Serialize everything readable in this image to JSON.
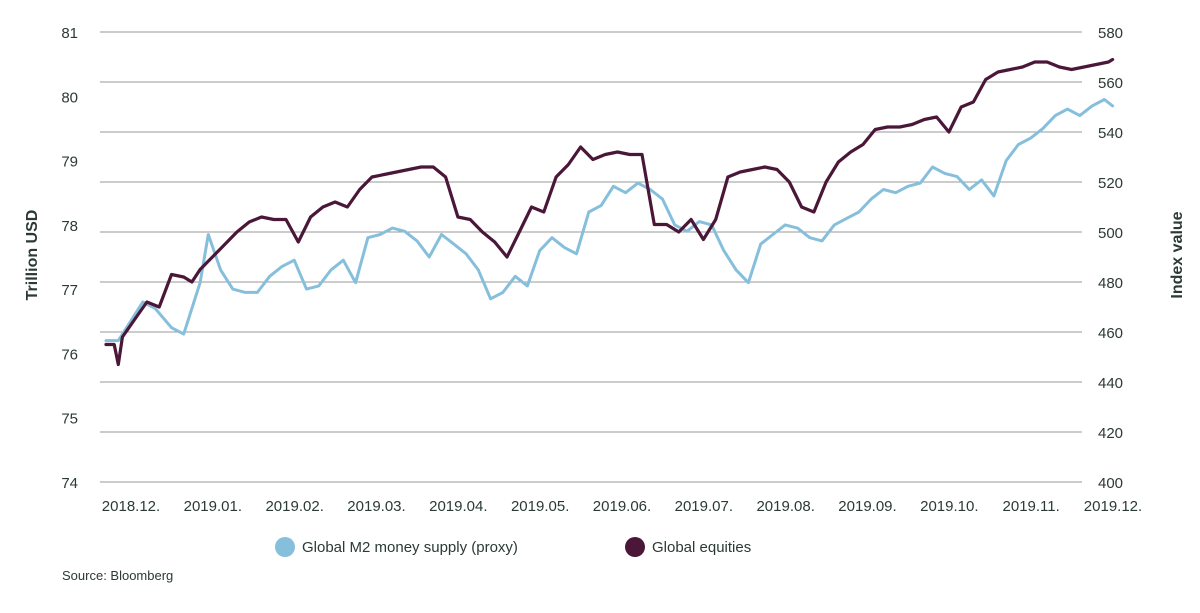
{
  "chart_data": {
    "type": "line",
    "title": "",
    "x_tick_labels": [
      "2018.12.",
      "2019.01.",
      "2019.02.",
      "2019.03.",
      "2019.04.",
      "2019.05.",
      "2019.06.",
      "2019.07.",
      "2019.08.",
      "2019.09.",
      "2019.10.",
      "2019.11.",
      "2019.12."
    ],
    "y_left": {
      "label": "Trillion USD",
      "ylim": [
        74,
        81
      ],
      "ticks": [
        "74",
        "75",
        "76",
        "77",
        "78",
        "79",
        "80",
        "81"
      ]
    },
    "y_right": {
      "label": "Index value",
      "ylim": [
        400,
        580
      ],
      "ticks": [
        "400",
        "420",
        "440",
        "460",
        "480",
        "500",
        "520",
        "540",
        "560",
        "580"
      ]
    },
    "grid": true,
    "legend_position": "bottom",
    "series": [
      {
        "name": "Global M2 money supply (proxy)",
        "axis": "left",
        "color": "#86bfdc",
        "x": [
          0,
          0.15,
          0.3,
          0.45,
          0.6,
          0.8,
          0.95,
          1.05,
          1.15,
          1.25,
          1.4,
          1.55,
          1.7,
          1.85,
          2.0,
          2.15,
          2.3,
          2.45,
          2.6,
          2.75,
          2.9,
          3.05,
          3.2,
          3.35,
          3.5,
          3.65,
          3.8,
          3.95,
          4.1,
          4.25,
          4.4,
          4.55,
          4.7,
          4.85,
          5.0,
          5.15,
          5.3,
          5.45,
          5.6,
          5.75,
          5.9,
          6.05,
          6.2,
          6.35,
          6.5,
          6.65,
          6.8,
          6.95,
          7.1,
          7.25,
          7.4,
          7.55,
          7.7,
          7.85,
          8.0,
          8.15,
          8.3,
          8.45,
          8.6,
          8.75,
          8.9,
          9.05,
          9.2,
          9.35,
          9.5,
          9.65,
          9.8,
          9.95,
          10.1,
          10.25,
          10.4,
          10.55,
          10.7,
          10.85,
          11.0,
          11.15,
          11.3,
          11.45,
          11.6,
          11.75,
          11.9,
          12.05,
          12.2,
          12.3
        ],
        "values": [
          76.2,
          76.2,
          76.5,
          76.8,
          76.7,
          76.4,
          76.3,
          76.7,
          77.1,
          77.85,
          77.3,
          77.0,
          76.95,
          76.95,
          77.2,
          77.35,
          77.45,
          77.0,
          77.05,
          77.3,
          77.45,
          77.1,
          77.8,
          77.85,
          77.95,
          77.9,
          77.75,
          77.5,
          77.85,
          77.7,
          77.55,
          77.3,
          76.85,
          76.95,
          77.2,
          77.05,
          77.6,
          77.8,
          77.65,
          77.55,
          78.2,
          78.3,
          78.6,
          78.5,
          78.65,
          78.55,
          78.4,
          78.0,
          77.9,
          78.05,
          78.0,
          77.6,
          77.3,
          77.1,
          77.7,
          77.85,
          78.0,
          77.95,
          77.8,
          77.75,
          78.0,
          78.1,
          78.2,
          78.4,
          78.55,
          78.5,
          78.6,
          78.65,
          78.9,
          78.8,
          78.75,
          78.55,
          78.7,
          78.45,
          79.0,
          79.25,
          79.35,
          79.5,
          79.7,
          79.8,
          79.7,
          79.85,
          79.95,
          79.85
        ]
      },
      {
        "name": "Global equities",
        "axis": "right",
        "color": "#4a1739",
        "x": [
          0,
          0.1,
          0.15,
          0.2,
          0.35,
          0.5,
          0.65,
          0.8,
          0.95,
          1.05,
          1.15,
          1.3,
          1.45,
          1.6,
          1.75,
          1.9,
          2.05,
          2.2,
          2.35,
          2.5,
          2.65,
          2.8,
          2.95,
          3.1,
          3.25,
          3.4,
          3.55,
          3.7,
          3.85,
          4.0,
          4.15,
          4.3,
          4.45,
          4.6,
          4.75,
          4.9,
          5.05,
          5.2,
          5.35,
          5.5,
          5.65,
          5.8,
          5.95,
          6.1,
          6.25,
          6.4,
          6.55,
          6.7,
          6.85,
          7.0,
          7.15,
          7.3,
          7.45,
          7.6,
          7.75,
          7.9,
          8.05,
          8.2,
          8.35,
          8.5,
          8.65,
          8.8,
          8.95,
          9.1,
          9.25,
          9.4,
          9.55,
          9.7,
          9.85,
          10.0,
          10.15,
          10.3,
          10.45,
          10.6,
          10.75,
          10.9,
          11.05,
          11.2,
          11.35,
          11.5,
          11.65,
          11.8,
          11.95,
          12.1,
          12.25,
          12.3
        ],
        "values": [
          455,
          455,
          447,
          458,
          465,
          472,
          470,
          483,
          482,
          480,
          485,
          490,
          495,
          500,
          504,
          506,
          505,
          505,
          496,
          506,
          510,
          512,
          510,
          517,
          522,
          523,
          524,
          525,
          526,
          526,
          522,
          506,
          505,
          500,
          496,
          490,
          500,
          510,
          508,
          522,
          527,
          534,
          529,
          531,
          532,
          531,
          531,
          503,
          503,
          500,
          505,
          497,
          505,
          522,
          524,
          525,
          526,
          525,
          520,
          510,
          508,
          520,
          528,
          532,
          535,
          541,
          542,
          542,
          543,
          545,
          546,
          540,
          550,
          552,
          561,
          564,
          565,
          566,
          568,
          568,
          566,
          565,
          566,
          567,
          568,
          569
        ]
      }
    ]
  },
  "legend": {
    "items": [
      {
        "label": "Global M2 money supply (proxy)",
        "color": "#86bfdc"
      },
      {
        "label": "Global equities",
        "color": "#4a1739"
      }
    ]
  },
  "source": "Source: Bloomberg"
}
